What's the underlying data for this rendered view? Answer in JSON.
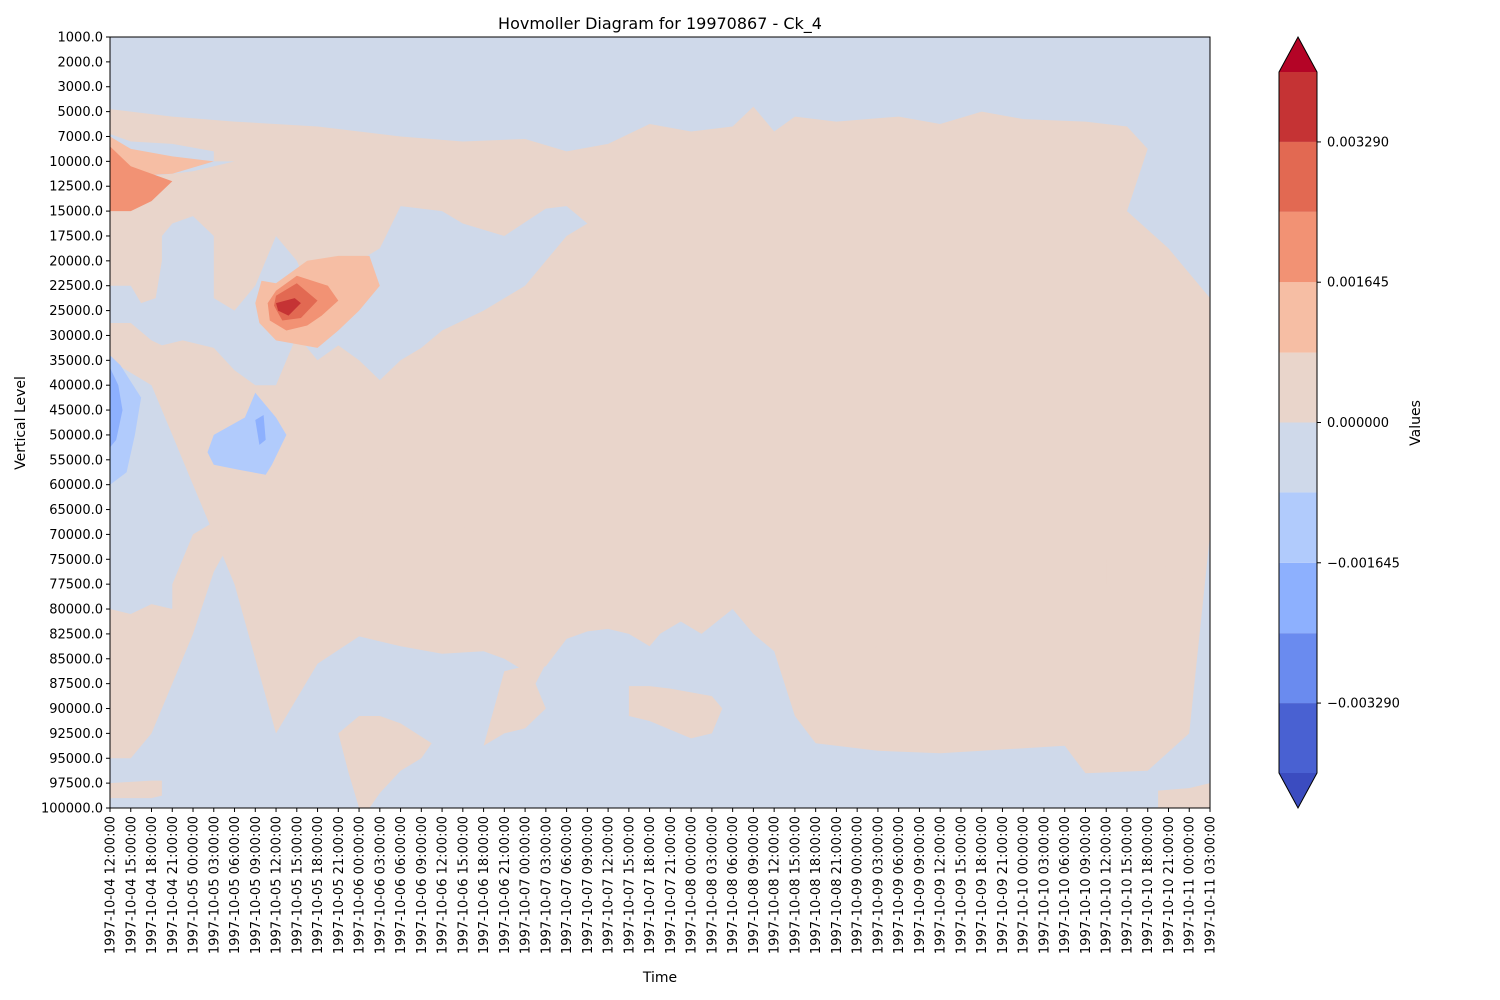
{
  "chart_data": {
    "type": "heatmap",
    "subtype": "filled-contour",
    "title": "Hovmoller Diagram for 19970867 - Ck_4",
    "xlabel": "Time",
    "ylabel": "Vertical Level",
    "x": [
      "1997-10-04 12:00:00",
      "1997-10-04 15:00:00",
      "1997-10-04 18:00:00",
      "1997-10-04 21:00:00",
      "1997-10-05 00:00:00",
      "1997-10-05 03:00:00",
      "1997-10-05 06:00:00",
      "1997-10-05 09:00:00",
      "1997-10-05 12:00:00",
      "1997-10-05 15:00:00",
      "1997-10-05 18:00:00",
      "1997-10-05 21:00:00",
      "1997-10-06 00:00:00",
      "1997-10-06 03:00:00",
      "1997-10-06 06:00:00",
      "1997-10-06 09:00:00",
      "1997-10-06 12:00:00",
      "1997-10-06 15:00:00",
      "1997-10-06 18:00:00",
      "1997-10-06 21:00:00",
      "1997-10-07 00:00:00",
      "1997-10-07 03:00:00",
      "1997-10-07 06:00:00",
      "1997-10-07 09:00:00",
      "1997-10-07 12:00:00",
      "1997-10-07 15:00:00",
      "1997-10-07 18:00:00",
      "1997-10-07 21:00:00",
      "1997-10-08 00:00:00",
      "1997-10-08 03:00:00",
      "1997-10-08 06:00:00",
      "1997-10-08 09:00:00",
      "1997-10-08 12:00:00",
      "1997-10-08 15:00:00",
      "1997-10-08 18:00:00",
      "1997-10-08 21:00:00",
      "1997-10-09 00:00:00",
      "1997-10-09 03:00:00",
      "1997-10-09 06:00:00",
      "1997-10-09 09:00:00",
      "1997-10-09 12:00:00",
      "1997-10-09 15:00:00",
      "1997-10-09 18:00:00",
      "1997-10-09 21:00:00",
      "1997-10-10 00:00:00",
      "1997-10-10 03:00:00",
      "1997-10-10 06:00:00",
      "1997-10-10 09:00:00",
      "1997-10-10 12:00:00",
      "1997-10-10 15:00:00",
      "1997-10-10 18:00:00",
      "1997-10-10 21:00:00",
      "1997-10-11 00:00:00",
      "1997-10-11 03:00:00"
    ],
    "y": [
      "1000.0",
      "2000.0",
      "3000.0",
      "5000.0",
      "7000.0",
      "10000.0",
      "12500.0",
      "15000.0",
      "17500.0",
      "20000.0",
      "22500.0",
      "25000.0",
      "30000.0",
      "35000.0",
      "40000.0",
      "45000.0",
      "50000.0",
      "55000.0",
      "60000.0",
      "65000.0",
      "70000.0",
      "75000.0",
      "77500.0",
      "80000.0",
      "82500.0",
      "85000.0",
      "87500.0",
      "90000.0",
      "92500.0",
      "95000.0",
      "97500.0",
      "100000.0"
    ],
    "y_inverted": true,
    "colorbar": {
      "label": "Values",
      "ticks": [
        "0.003290",
        "0.001645",
        "0.000000",
        "−0.001645",
        "−0.003290"
      ],
      "extend": "both",
      "colormap": "coolwarm",
      "levels": [
        -0.00411,
        -0.00329,
        -0.00247,
        -0.001645,
        -0.00082,
        0.0,
        0.00082,
        0.001645,
        0.00247,
        0.00329,
        0.00411
      ],
      "band_colors": [
        "#4961d2",
        "#6a8bef",
        "#8db0fe",
        "#b1cbfc",
        "#cfd9ea",
        "#e9d5cb",
        "#f6bea4",
        "#f29274",
        "#e26952",
        "#c53334"
      ],
      "under_color": "#3b4cc0",
      "over_color": "#b40426"
    },
    "features": [
      {
        "name": "dominant positive core",
        "x": "1997-10-05 12:00:00",
        "y": "22500.0",
        "value": 0.0037
      },
      {
        "name": "upper positive lobe",
        "x": "1997-10-04 15:00:00",
        "y": "10000.0",
        "value": 0.0027
      },
      {
        "name": "negative anomaly",
        "x": "1997-10-05 09:00:00",
        "y": "50000.0",
        "value": -0.0019
      },
      {
        "name": "negative anomaly",
        "x": "1997-10-04 12:00:00",
        "y": "40000.0",
        "value": -0.0024
      }
    ]
  }
}
